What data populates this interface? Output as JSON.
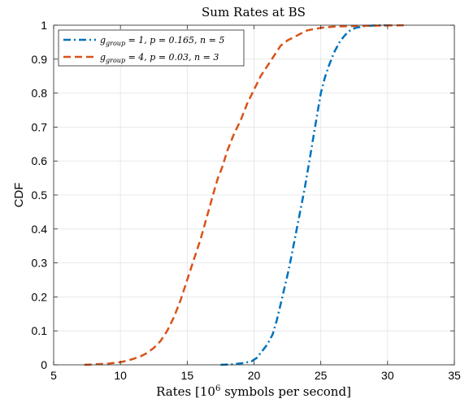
{
  "chart_data": {
    "type": "line",
    "title": "Sum Rates at BS",
    "xlabel": {
      "prefix": "Rates [10",
      "sup": "6",
      "suffix": " symbols per second]"
    },
    "ylabel": "CDF",
    "xlim": [
      5,
      35
    ],
    "ylim": [
      0,
      1
    ],
    "xticks": [
      5,
      10,
      15,
      20,
      25,
      30,
      35
    ],
    "yticks": [
      0,
      0.1,
      0.2,
      0.3,
      0.4,
      0.5,
      0.6,
      0.7,
      0.8,
      0.9,
      1
    ],
    "grid": true,
    "legend_position": "top-left",
    "series": [
      {
        "name": "g_group = 1, p = 0.165, n = 5",
        "legend": {
          "g": "g",
          "sub": "group",
          "rest": " = 1, p = 0.165, n = 5"
        },
        "color": "#0072BD",
        "dash": "dash-dot",
        "x": [
          17.5,
          18.5,
          19.2,
          19.8,
          20.2,
          20.6,
          21.0,
          21.4,
          21.7,
          22.0,
          22.3,
          22.6,
          22.9,
          23.2,
          23.5,
          23.8,
          24.1,
          24.4,
          24.7,
          25.0,
          25.3,
          25.6,
          26.0,
          26.4,
          26.8,
          27.2,
          27.6,
          28.2,
          29.0,
          30.5
        ],
        "y": [
          0.0,
          0.002,
          0.005,
          0.01,
          0.02,
          0.04,
          0.06,
          0.09,
          0.13,
          0.18,
          0.23,
          0.28,
          0.34,
          0.4,
          0.46,
          0.52,
          0.59,
          0.66,
          0.73,
          0.8,
          0.845,
          0.88,
          0.92,
          0.95,
          0.97,
          0.985,
          0.992,
          0.997,
          0.999,
          1.0
        ]
      },
      {
        "name": "g_group = 4, p = 0.03, n = 3",
        "legend": {
          "g": "g",
          "sub": "group",
          "rest": " = 4, p = 0.03, n = 3"
        },
        "color": "#D95319",
        "dash": "dashed",
        "x": [
          7.3,
          9.0,
          10.0,
          10.5,
          11.0,
          11.5,
          12.0,
          12.5,
          13.0,
          13.5,
          14.0,
          14.5,
          15.0,
          15.5,
          16.0,
          16.5,
          17.0,
          17.3,
          17.6,
          18.0,
          18.5,
          19.0,
          19.5,
          20.0,
          20.5,
          21.0,
          21.5,
          22.0,
          22.5,
          23.0,
          23.5,
          24.0,
          25.0,
          26.0,
          28.0,
          30.0,
          31.5
        ],
        "y": [
          0.0,
          0.003,
          0.008,
          0.012,
          0.018,
          0.025,
          0.035,
          0.05,
          0.07,
          0.1,
          0.14,
          0.19,
          0.25,
          0.31,
          0.37,
          0.44,
          0.51,
          0.55,
          0.58,
          0.63,
          0.68,
          0.72,
          0.77,
          0.81,
          0.85,
          0.88,
          0.91,
          0.94,
          0.955,
          0.965,
          0.975,
          0.985,
          0.992,
          0.996,
          0.998,
          0.999,
          1.0
        ]
      }
    ]
  }
}
